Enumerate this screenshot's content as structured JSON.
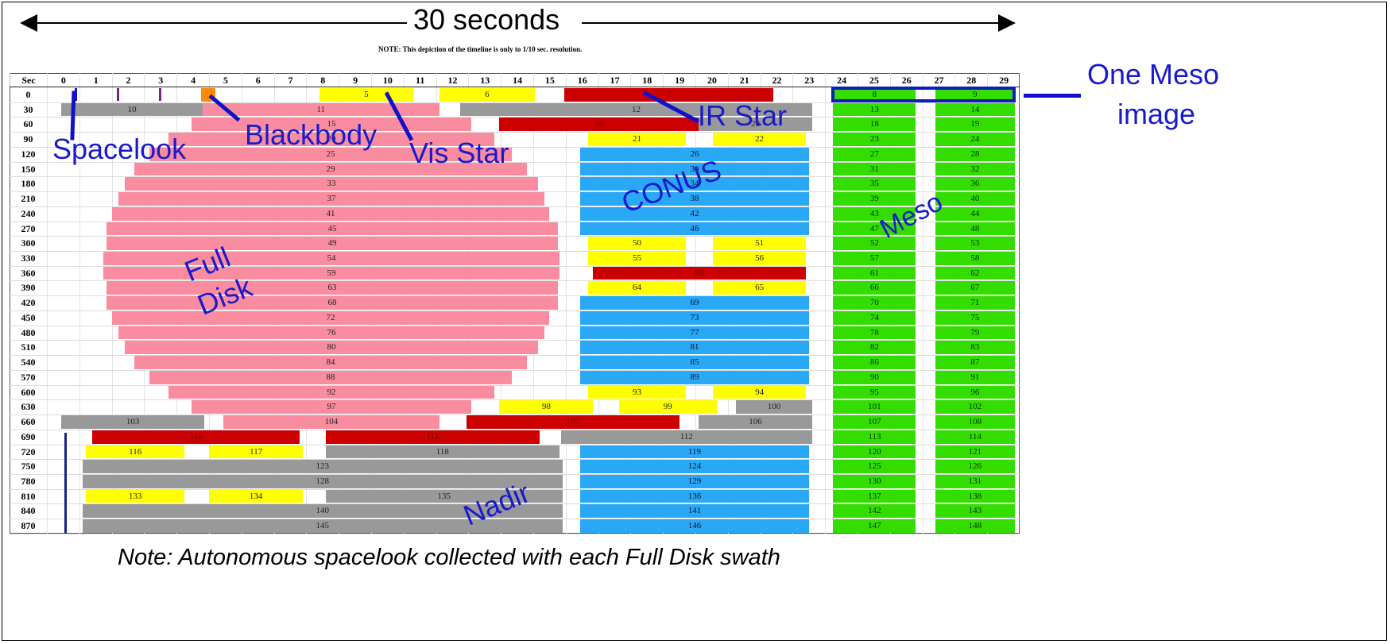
{
  "header": {
    "span_title": "30 seconds",
    "note": "NOTE: This depiction of the timeline is only to 1/10 sec. resolution."
  },
  "table": {
    "corner_label": "Sec",
    "columns": [
      "0",
      "1",
      "2",
      "3",
      "4",
      "5",
      "6",
      "7",
      "8",
      "9",
      "10",
      "11",
      "12",
      "13",
      "14",
      "15",
      "16",
      "17",
      "18",
      "19",
      "20",
      "21",
      "22",
      "23",
      "24",
      "25",
      "26",
      "27",
      "28",
      "29"
    ],
    "rows": [
      "0",
      "30",
      "60",
      "90",
      "120",
      "150",
      "180",
      "210",
      "240",
      "270",
      "300",
      "330",
      "360",
      "390",
      "420",
      "450",
      "480",
      "510",
      "540",
      "570",
      "600",
      "630",
      "660",
      "690",
      "720",
      "750",
      "780",
      "810",
      "840",
      "870"
    ]
  },
  "annotations": {
    "spacelook": "Spacelook",
    "blackbody": "Blackbody",
    "vis_star": "Vis Star",
    "ir_star": "IR Star",
    "one_meso_line1": "One Meso",
    "one_meso_line2": "image",
    "conus": "CONUS",
    "meso": "Meso",
    "full_disk_line1": "Full",
    "full_disk_line2": "Disk",
    "nadir": "Nadir"
  },
  "footer": {
    "note": "Note:  Autonomous spacelook collected with each Full Disk swath"
  },
  "colors": {
    "full_disk": "#fa8ca0",
    "nadir_other": "#999999",
    "vis_star": "#ffff00",
    "ir_star": "#cc0000",
    "conus": "#29a8f5",
    "meso": "#33dd00",
    "blackbody": "#ff8c00",
    "annotation": "#1a1acc"
  },
  "chart_data": {
    "type": "table",
    "title": "30 seconds",
    "subtitle": "NOTE: This depiction of the timeline is only to 1/10 sec. resolution.",
    "xlabel": "Sec (0-29)",
    "ylabel": "Sec (0-870, step 30)",
    "legend": {
      "pink": "Full Disk",
      "grey": "Nadir/other",
      "yellow": "Vis Star",
      "red": "IR Star",
      "blue": "CONUS",
      "green": "Meso",
      "orange": "Blackbody",
      "tick": "Spacelook"
    },
    "bars": [
      {
        "row": 0,
        "id": "spacelook",
        "start": 0.85,
        "end": 0.92,
        "color": "tick"
      },
      {
        "row": 0,
        "id": "spacelook2",
        "start": 2.15,
        "end": 2.22,
        "color": "tick"
      },
      {
        "row": 0,
        "id": "spacelook3",
        "start": 3.45,
        "end": 3.52,
        "color": "tick"
      },
      {
        "row": 0,
        "id": "blackbody",
        "start": 4.75,
        "end": 5.2,
        "color": "orange"
      },
      {
        "row": 0,
        "id": "5",
        "start": 8.4,
        "end": 11.3,
        "color": "yellow"
      },
      {
        "row": 0,
        "id": "6",
        "start": 12.1,
        "end": 15.05,
        "color": "yellow"
      },
      {
        "row": 0,
        "id": "7",
        "start": 15.95,
        "end": 22.4,
        "color": "red"
      },
      {
        "row": 0,
        "id": "8",
        "start": 24.25,
        "end": 26.8,
        "color": "green"
      },
      {
        "row": 0,
        "id": "9",
        "start": 27.4,
        "end": 29.85,
        "color": "green"
      },
      {
        "row": 30,
        "id": "10",
        "start": 0.45,
        "end": 4.8,
        "color": "grey"
      },
      {
        "row": 30,
        "id": "11",
        "start": 4.8,
        "end": 12.1,
        "color": "pink"
      },
      {
        "row": 30,
        "id": "12",
        "start": 12.75,
        "end": 23.6,
        "color": "grey"
      },
      {
        "row": 30,
        "id": "13",
        "start": 24.25,
        "end": 26.8,
        "color": "green"
      },
      {
        "row": 30,
        "id": "14",
        "start": 27.4,
        "end": 29.85,
        "color": "green"
      },
      {
        "row": 60,
        "id": "15",
        "start": 4.45,
        "end": 13.1,
        "color": "pink"
      },
      {
        "row": 60,
        "id": "16",
        "start": 13.95,
        "end": 20.1,
        "color": "red"
      },
      {
        "row": 60,
        "id": "20",
        "start": 20.1,
        "end": 23.6,
        "color": "grey"
      },
      {
        "row": 60,
        "id": "18",
        "start": 24.25,
        "end": 26.8,
        "color": "green"
      },
      {
        "row": 60,
        "id": "19",
        "start": 27.4,
        "end": 29.85,
        "color": "green"
      },
      {
        "row": 90,
        "id": "20",
        "start": 3.75,
        "end": 13.8,
        "color": "pink"
      },
      {
        "row": 90,
        "id": "21",
        "start": 16.7,
        "end": 19.7,
        "color": "yellow"
      },
      {
        "row": 90,
        "id": "22",
        "start": 20.55,
        "end": 23.4,
        "color": "yellow"
      },
      {
        "row": 90,
        "id": "23",
        "start": 24.25,
        "end": 26.8,
        "color": "green"
      },
      {
        "row": 90,
        "id": "24",
        "start": 27.4,
        "end": 29.85,
        "color": "green"
      },
      {
        "row": 120,
        "id": "25",
        "start": 3.15,
        "end": 14.35,
        "color": "pink"
      },
      {
        "row": 120,
        "id": "26",
        "start": 16.45,
        "end": 23.5,
        "color": "blue"
      },
      {
        "row": 120,
        "id": "27",
        "start": 24.25,
        "end": 26.8,
        "color": "green"
      },
      {
        "row": 120,
        "id": "28",
        "start": 27.4,
        "end": 29.85,
        "color": "green"
      },
      {
        "row": 150,
        "id": "29",
        "start": 2.7,
        "end": 14.8,
        "color": "pink"
      },
      {
        "row": 150,
        "id": "30",
        "start": 16.45,
        "end": 23.5,
        "color": "blue"
      },
      {
        "row": 150,
        "id": "31",
        "start": 24.25,
        "end": 26.8,
        "color": "green"
      },
      {
        "row": 150,
        "id": "32",
        "start": 27.4,
        "end": 29.85,
        "color": "green"
      },
      {
        "row": 180,
        "id": "33",
        "start": 2.4,
        "end": 15.15,
        "color": "pink"
      },
      {
        "row": 180,
        "id": "34",
        "start": 16.45,
        "end": 23.5,
        "color": "blue"
      },
      {
        "row": 180,
        "id": "35",
        "start": 24.25,
        "end": 26.8,
        "color": "green"
      },
      {
        "row": 180,
        "id": "36",
        "start": 27.4,
        "end": 29.85,
        "color": "green"
      },
      {
        "row": 210,
        "id": "37",
        "start": 2.2,
        "end": 15.35,
        "color": "pink"
      },
      {
        "row": 210,
        "id": "38",
        "start": 16.45,
        "end": 23.5,
        "color": "blue"
      },
      {
        "row": 210,
        "id": "39",
        "start": 24.25,
        "end": 26.8,
        "color": "green"
      },
      {
        "row": 210,
        "id": "40",
        "start": 27.4,
        "end": 29.85,
        "color": "green"
      },
      {
        "row": 240,
        "id": "41",
        "start": 2.0,
        "end": 15.5,
        "color": "pink"
      },
      {
        "row": 240,
        "id": "42",
        "start": 16.45,
        "end": 23.5,
        "color": "blue"
      },
      {
        "row": 240,
        "id": "43",
        "start": 24.25,
        "end": 26.8,
        "color": "green"
      },
      {
        "row": 240,
        "id": "44",
        "start": 27.4,
        "end": 29.85,
        "color": "green"
      },
      {
        "row": 270,
        "id": "45",
        "start": 1.85,
        "end": 15.75,
        "color": "pink"
      },
      {
        "row": 270,
        "id": "46",
        "start": 16.45,
        "end": 23.5,
        "color": "blue"
      },
      {
        "row": 270,
        "id": "47",
        "start": 24.25,
        "end": 26.8,
        "color": "green"
      },
      {
        "row": 270,
        "id": "48",
        "start": 27.4,
        "end": 29.85,
        "color": "green"
      },
      {
        "row": 300,
        "id": "49",
        "start": 1.85,
        "end": 15.75,
        "color": "pink"
      },
      {
        "row": 300,
        "id": "50",
        "start": 16.7,
        "end": 19.7,
        "color": "yellow"
      },
      {
        "row": 300,
        "id": "51",
        "start": 20.55,
        "end": 23.4,
        "color": "yellow"
      },
      {
        "row": 300,
        "id": "52",
        "start": 24.25,
        "end": 26.8,
        "color": "green"
      },
      {
        "row": 300,
        "id": "53",
        "start": 27.4,
        "end": 29.85,
        "color": "green"
      },
      {
        "row": 330,
        "id": "54",
        "start": 1.75,
        "end": 15.8,
        "color": "pink"
      },
      {
        "row": 330,
        "id": "55",
        "start": 16.7,
        "end": 19.7,
        "color": "yellow"
      },
      {
        "row": 330,
        "id": "56",
        "start": 20.55,
        "end": 23.4,
        "color": "yellow"
      },
      {
        "row": 330,
        "id": "57",
        "start": 24.25,
        "end": 26.8,
        "color": "green"
      },
      {
        "row": 330,
        "id": "58",
        "start": 27.4,
        "end": 29.85,
        "color": "green"
      },
      {
        "row": 360,
        "id": "59",
        "start": 1.75,
        "end": 15.8,
        "color": "pink"
      },
      {
        "row": 360,
        "id": "60",
        "start": 16.85,
        "end": 23.4,
        "color": "red"
      },
      {
        "row": 360,
        "id": "61",
        "start": 24.25,
        "end": 26.8,
        "color": "green"
      },
      {
        "row": 360,
        "id": "62",
        "start": 27.4,
        "end": 29.85,
        "color": "green"
      },
      {
        "row": 390,
        "id": "63",
        "start": 1.85,
        "end": 15.75,
        "color": "pink"
      },
      {
        "row": 390,
        "id": "64",
        "start": 16.7,
        "end": 19.7,
        "color": "yellow"
      },
      {
        "row": 390,
        "id": "65",
        "start": 20.55,
        "end": 23.4,
        "color": "yellow"
      },
      {
        "row": 390,
        "id": "66",
        "start": 24.25,
        "end": 26.8,
        "color": "green"
      },
      {
        "row": 390,
        "id": "67",
        "start": 27.4,
        "end": 29.85,
        "color": "green"
      },
      {
        "row": 420,
        "id": "68",
        "start": 1.85,
        "end": 15.75,
        "color": "pink"
      },
      {
        "row": 420,
        "id": "69",
        "start": 16.45,
        "end": 23.5,
        "color": "blue"
      },
      {
        "row": 420,
        "id": "70",
        "start": 24.25,
        "end": 26.8,
        "color": "green"
      },
      {
        "row": 420,
        "id": "71",
        "start": 27.4,
        "end": 29.85,
        "color": "green"
      },
      {
        "row": 450,
        "id": "72",
        "start": 2.0,
        "end": 15.5,
        "color": "pink"
      },
      {
        "row": 450,
        "id": "73",
        "start": 16.45,
        "end": 23.5,
        "color": "blue"
      },
      {
        "row": 450,
        "id": "74",
        "start": 24.25,
        "end": 26.8,
        "color": "green"
      },
      {
        "row": 450,
        "id": "75",
        "start": 27.4,
        "end": 29.85,
        "color": "green"
      },
      {
        "row": 480,
        "id": "76",
        "start": 2.2,
        "end": 15.35,
        "color": "pink"
      },
      {
        "row": 480,
        "id": "77",
        "start": 16.45,
        "end": 23.5,
        "color": "blue"
      },
      {
        "row": 480,
        "id": "78",
        "start": 24.25,
        "end": 26.8,
        "color": "green"
      },
      {
        "row": 480,
        "id": "79",
        "start": 27.4,
        "end": 29.85,
        "color": "green"
      },
      {
        "row": 510,
        "id": "80",
        "start": 2.4,
        "end": 15.15,
        "color": "pink"
      },
      {
        "row": 510,
        "id": "81",
        "start": 16.45,
        "end": 23.5,
        "color": "blue"
      },
      {
        "row": 510,
        "id": "82",
        "start": 24.25,
        "end": 26.8,
        "color": "green"
      },
      {
        "row": 510,
        "id": "83",
        "start": 27.4,
        "end": 29.85,
        "color": "green"
      },
      {
        "row": 540,
        "id": "84",
        "start": 2.7,
        "end": 14.8,
        "color": "pink"
      },
      {
        "row": 540,
        "id": "85",
        "start": 16.45,
        "end": 23.5,
        "color": "blue"
      },
      {
        "row": 540,
        "id": "86",
        "start": 24.25,
        "end": 26.8,
        "color": "green"
      },
      {
        "row": 540,
        "id": "87",
        "start": 27.4,
        "end": 29.85,
        "color": "green"
      },
      {
        "row": 570,
        "id": "88",
        "start": 3.15,
        "end": 14.35,
        "color": "pink"
      },
      {
        "row": 570,
        "id": "89",
        "start": 16.45,
        "end": 23.5,
        "color": "blue"
      },
      {
        "row": 570,
        "id": "90",
        "start": 24.25,
        "end": 26.8,
        "color": "green"
      },
      {
        "row": 570,
        "id": "91",
        "start": 27.4,
        "end": 29.85,
        "color": "green"
      },
      {
        "row": 600,
        "id": "92",
        "start": 3.75,
        "end": 13.8,
        "color": "pink"
      },
      {
        "row": 600,
        "id": "93",
        "start": 16.7,
        "end": 19.7,
        "color": "yellow"
      },
      {
        "row": 600,
        "id": "94",
        "start": 20.55,
        "end": 23.4,
        "color": "yellow"
      },
      {
        "row": 600,
        "id": "95",
        "start": 24.25,
        "end": 26.8,
        "color": "green"
      },
      {
        "row": 600,
        "id": "96",
        "start": 27.4,
        "end": 29.85,
        "color": "green"
      },
      {
        "row": 630,
        "id": "97",
        "start": 4.45,
        "end": 13.1,
        "color": "pink"
      },
      {
        "row": 630,
        "id": "98",
        "start": 13.95,
        "end": 16.85,
        "color": "yellow"
      },
      {
        "row": 630,
        "id": "99",
        "start": 17.65,
        "end": 20.65,
        "color": "yellow"
      },
      {
        "row": 630,
        "id": "100",
        "start": 21.25,
        "end": 23.6,
        "color": "grey"
      },
      {
        "row": 630,
        "id": "101",
        "start": 24.25,
        "end": 26.8,
        "color": "green"
      },
      {
        "row": 630,
        "id": "102",
        "start": 27.4,
        "end": 29.85,
        "color": "green"
      },
      {
        "row": 660,
        "id": "103",
        "start": 0.45,
        "end": 4.85,
        "color": "grey"
      },
      {
        "row": 660,
        "id": "104",
        "start": 5.45,
        "end": 12.1,
        "color": "pink"
      },
      {
        "row": 660,
        "id": "105",
        "start": 12.95,
        "end": 19.5,
        "color": "red"
      },
      {
        "row": 660,
        "id": "106",
        "start": 20.1,
        "end": 23.6,
        "color": "grey"
      },
      {
        "row": 660,
        "id": "107",
        "start": 24.25,
        "end": 26.8,
        "color": "green"
      },
      {
        "row": 660,
        "id": "108",
        "start": 27.4,
        "end": 29.85,
        "color": "green"
      },
      {
        "row": 690,
        "id": "110",
        "start": 1.4,
        "end": 7.8,
        "color": "red"
      },
      {
        "row": 690,
        "id": "111",
        "start": 8.6,
        "end": 15.2,
        "color": "red"
      },
      {
        "row": 690,
        "id": "112",
        "start": 15.85,
        "end": 23.6,
        "color": "grey"
      },
      {
        "row": 690,
        "id": "113",
        "start": 24.25,
        "end": 26.8,
        "color": "green"
      },
      {
        "row": 690,
        "id": "114",
        "start": 27.4,
        "end": 29.85,
        "color": "green"
      },
      {
        "row": 720,
        "id": "116",
        "start": 1.2,
        "end": 4.25,
        "color": "yellow"
      },
      {
        "row": 720,
        "id": "117",
        "start": 5.0,
        "end": 7.9,
        "color": "yellow"
      },
      {
        "row": 720,
        "id": "118",
        "start": 8.6,
        "end": 15.8,
        "color": "grey"
      },
      {
        "row": 720,
        "id": "119",
        "start": 16.45,
        "end": 23.5,
        "color": "blue"
      },
      {
        "row": 720,
        "id": "120",
        "start": 24.25,
        "end": 26.8,
        "color": "green"
      },
      {
        "row": 720,
        "id": "121",
        "start": 27.4,
        "end": 29.85,
        "color": "green"
      },
      {
        "row": 750,
        "id": "123",
        "start": 1.1,
        "end": 15.9,
        "color": "grey"
      },
      {
        "row": 750,
        "id": "124",
        "start": 16.45,
        "end": 23.5,
        "color": "blue"
      },
      {
        "row": 750,
        "id": "125",
        "start": 24.25,
        "end": 26.8,
        "color": "green"
      },
      {
        "row": 750,
        "id": "126",
        "start": 27.4,
        "end": 29.85,
        "color": "green"
      },
      {
        "row": 780,
        "id": "128",
        "start": 1.1,
        "end": 15.9,
        "color": "grey"
      },
      {
        "row": 780,
        "id": "129",
        "start": 16.45,
        "end": 23.5,
        "color": "blue"
      },
      {
        "row": 780,
        "id": "130",
        "start": 24.25,
        "end": 26.8,
        "color": "green"
      },
      {
        "row": 780,
        "id": "131",
        "start": 27.4,
        "end": 29.85,
        "color": "green"
      },
      {
        "row": 810,
        "id": "133",
        "start": 1.2,
        "end": 4.25,
        "color": "yellow"
      },
      {
        "row": 810,
        "id": "134",
        "start": 5.0,
        "end": 7.9,
        "color": "yellow"
      },
      {
        "row": 810,
        "id": "135",
        "start": 8.6,
        "end": 15.9,
        "color": "grey"
      },
      {
        "row": 810,
        "id": "136",
        "start": 16.45,
        "end": 23.5,
        "color": "blue"
      },
      {
        "row": 810,
        "id": "137",
        "start": 24.25,
        "end": 26.8,
        "color": "green"
      },
      {
        "row": 810,
        "id": "138",
        "start": 27.4,
        "end": 29.85,
        "color": "green"
      },
      {
        "row": 840,
        "id": "140",
        "start": 1.1,
        "end": 15.9,
        "color": "grey"
      },
      {
        "row": 840,
        "id": "141",
        "start": 16.45,
        "end": 23.5,
        "color": "blue"
      },
      {
        "row": 840,
        "id": "142",
        "start": 24.25,
        "end": 26.8,
        "color": "green"
      },
      {
        "row": 840,
        "id": "143",
        "start": 27.4,
        "end": 29.85,
        "color": "green"
      },
      {
        "row": 870,
        "id": "145",
        "start": 1.1,
        "end": 15.9,
        "color": "grey"
      },
      {
        "row": 870,
        "id": "146",
        "start": 16.45,
        "end": 23.5,
        "color": "blue"
      },
      {
        "row": 870,
        "id": "147",
        "start": 24.25,
        "end": 26.8,
        "color": "green"
      },
      {
        "row": 870,
        "id": "148",
        "start": 27.4,
        "end": 29.85,
        "color": "green"
      }
    ]
  }
}
